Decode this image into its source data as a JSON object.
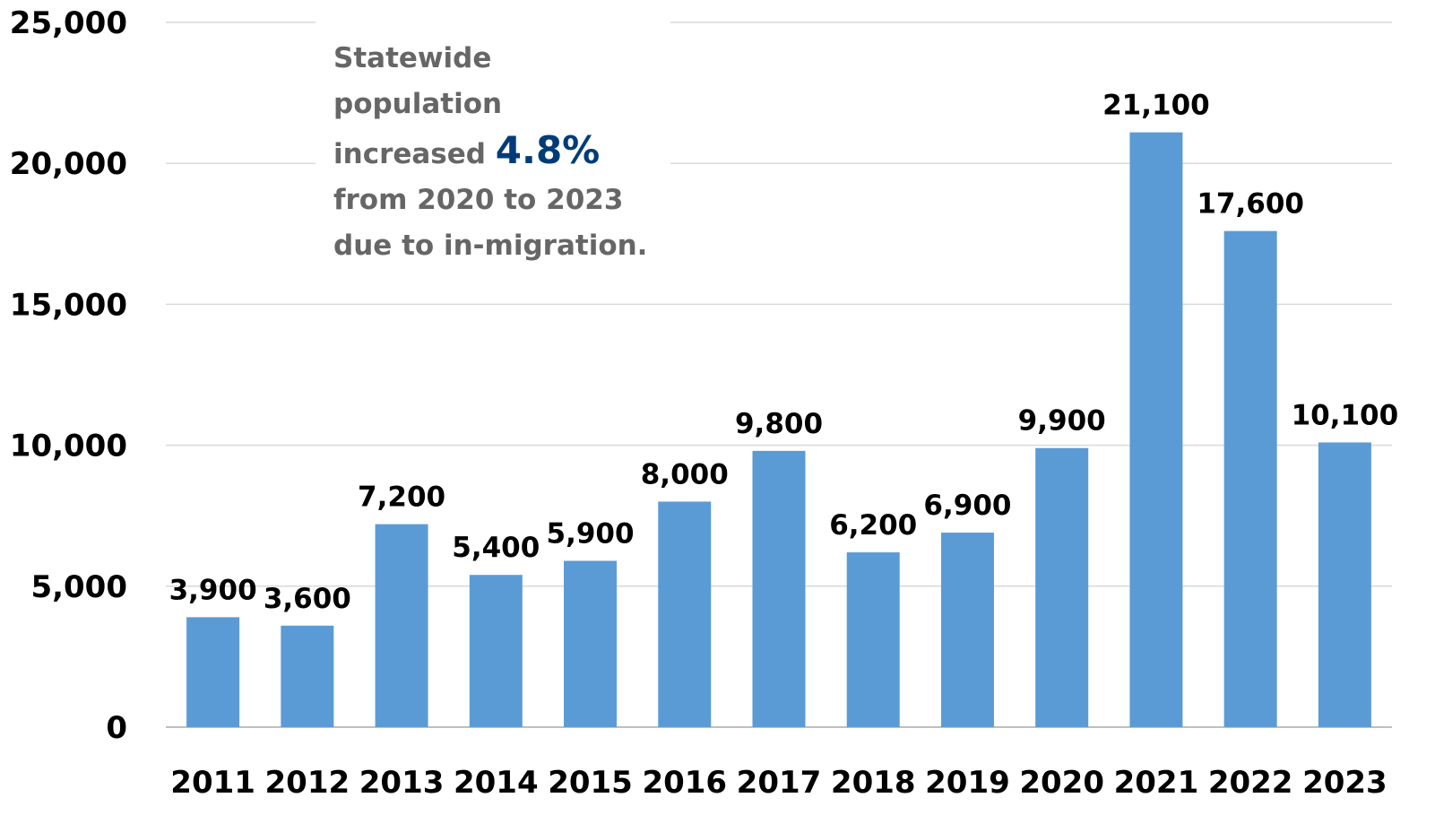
{
  "chart_data": {
    "type": "bar",
    "categories": [
      "2011",
      "2012",
      "2013",
      "2014",
      "2015",
      "2016",
      "2017",
      "2018",
      "2019",
      "2020",
      "2021",
      "2022",
      "2023"
    ],
    "values": [
      3900,
      3600,
      7200,
      5400,
      5900,
      8000,
      9800,
      6200,
      6900,
      9900,
      21100,
      17600,
      10100
    ],
    "value_labels": [
      "3,900",
      "3,600",
      "7,200",
      "5,400",
      "5,900",
      "8,000",
      "9,800",
      "6,200",
      "6,900",
      "9,900",
      "21,100",
      "17,600",
      "10,100"
    ],
    "ylim": [
      0,
      25000
    ],
    "yticks": [
      0,
      5000,
      10000,
      15000,
      20000,
      25000
    ],
    "ytick_labels": [
      "0",
      "5,000",
      "10,000",
      "15,000",
      "20,000",
      "25,000"
    ],
    "grid": true,
    "bar_color": "#5b9bd5",
    "annotation": {
      "line1": "Statewide",
      "line2": "population",
      "line3_prefix": "increased",
      "highlight": "4.8%",
      "line4": "from 2020 to 2023",
      "line5": "due to in-migration.",
      "text_color": "#666666",
      "highlight_color": "#003c78"
    }
  }
}
